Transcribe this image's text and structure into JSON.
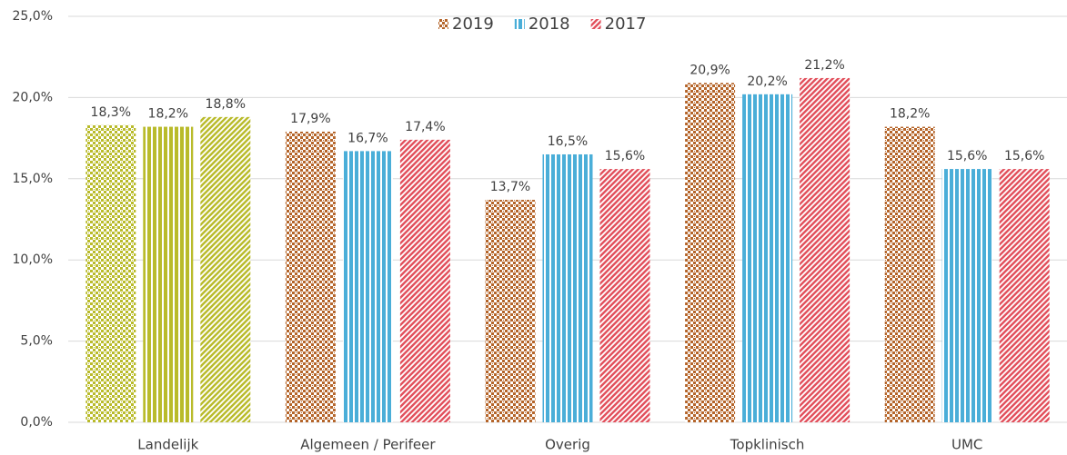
{
  "chart_data": {
    "type": "bar",
    "categories": [
      "Landelijk",
      "Algemeen / Perifeer",
      "Overig",
      "Topklinisch",
      "UMC"
    ],
    "series": [
      {
        "name": "2019",
        "color": "#b5652a",
        "pattern": "checker",
        "colors": [
          "#b9bb2b",
          "#b5652a",
          "#b5652a",
          "#b5652a",
          "#b5652a"
        ],
        "values": [
          18.3,
          17.9,
          13.7,
          20.9,
          18.2
        ],
        "value_labels": [
          "18,3%",
          "17,9%",
          "13,7%",
          "20,9%",
          "18,2%"
        ]
      },
      {
        "name": "2018",
        "color": "#4aaed8",
        "pattern": "vertical",
        "colors": [
          "#b9bb2b",
          "#4aaed8",
          "#4aaed8",
          "#4aaed8",
          "#4aaed8"
        ],
        "values": [
          18.2,
          16.7,
          16.5,
          20.2,
          15.6
        ],
        "value_labels": [
          "18,2%",
          "16,7%",
          "16,5%",
          "20,2%",
          "15,6%"
        ]
      },
      {
        "name": "2017",
        "color": "#e2505c",
        "pattern": "diagonal",
        "colors": [
          "#b9bb2b",
          "#e2505c",
          "#e2505c",
          "#e2505c",
          "#e2505c"
        ],
        "values": [
          18.8,
          17.4,
          15.6,
          21.2,
          15.6
        ],
        "value_labels": [
          "18,8%",
          "17,4%",
          "15,6%",
          "21,2%",
          "15,6%"
        ]
      }
    ],
    "ylim": [
      0,
      25
    ],
    "yticks": [
      {
        "value": 0,
        "label": "0,0%"
      },
      {
        "value": 5,
        "label": "5,0%"
      },
      {
        "value": 10,
        "label": "10,0%"
      },
      {
        "value": 15,
        "label": "15,0%"
      },
      {
        "value": 20,
        "label": "20,0%"
      },
      {
        "value": 25,
        "label": "25,0%"
      }
    ],
    "grid": true,
    "legend": "top"
  }
}
